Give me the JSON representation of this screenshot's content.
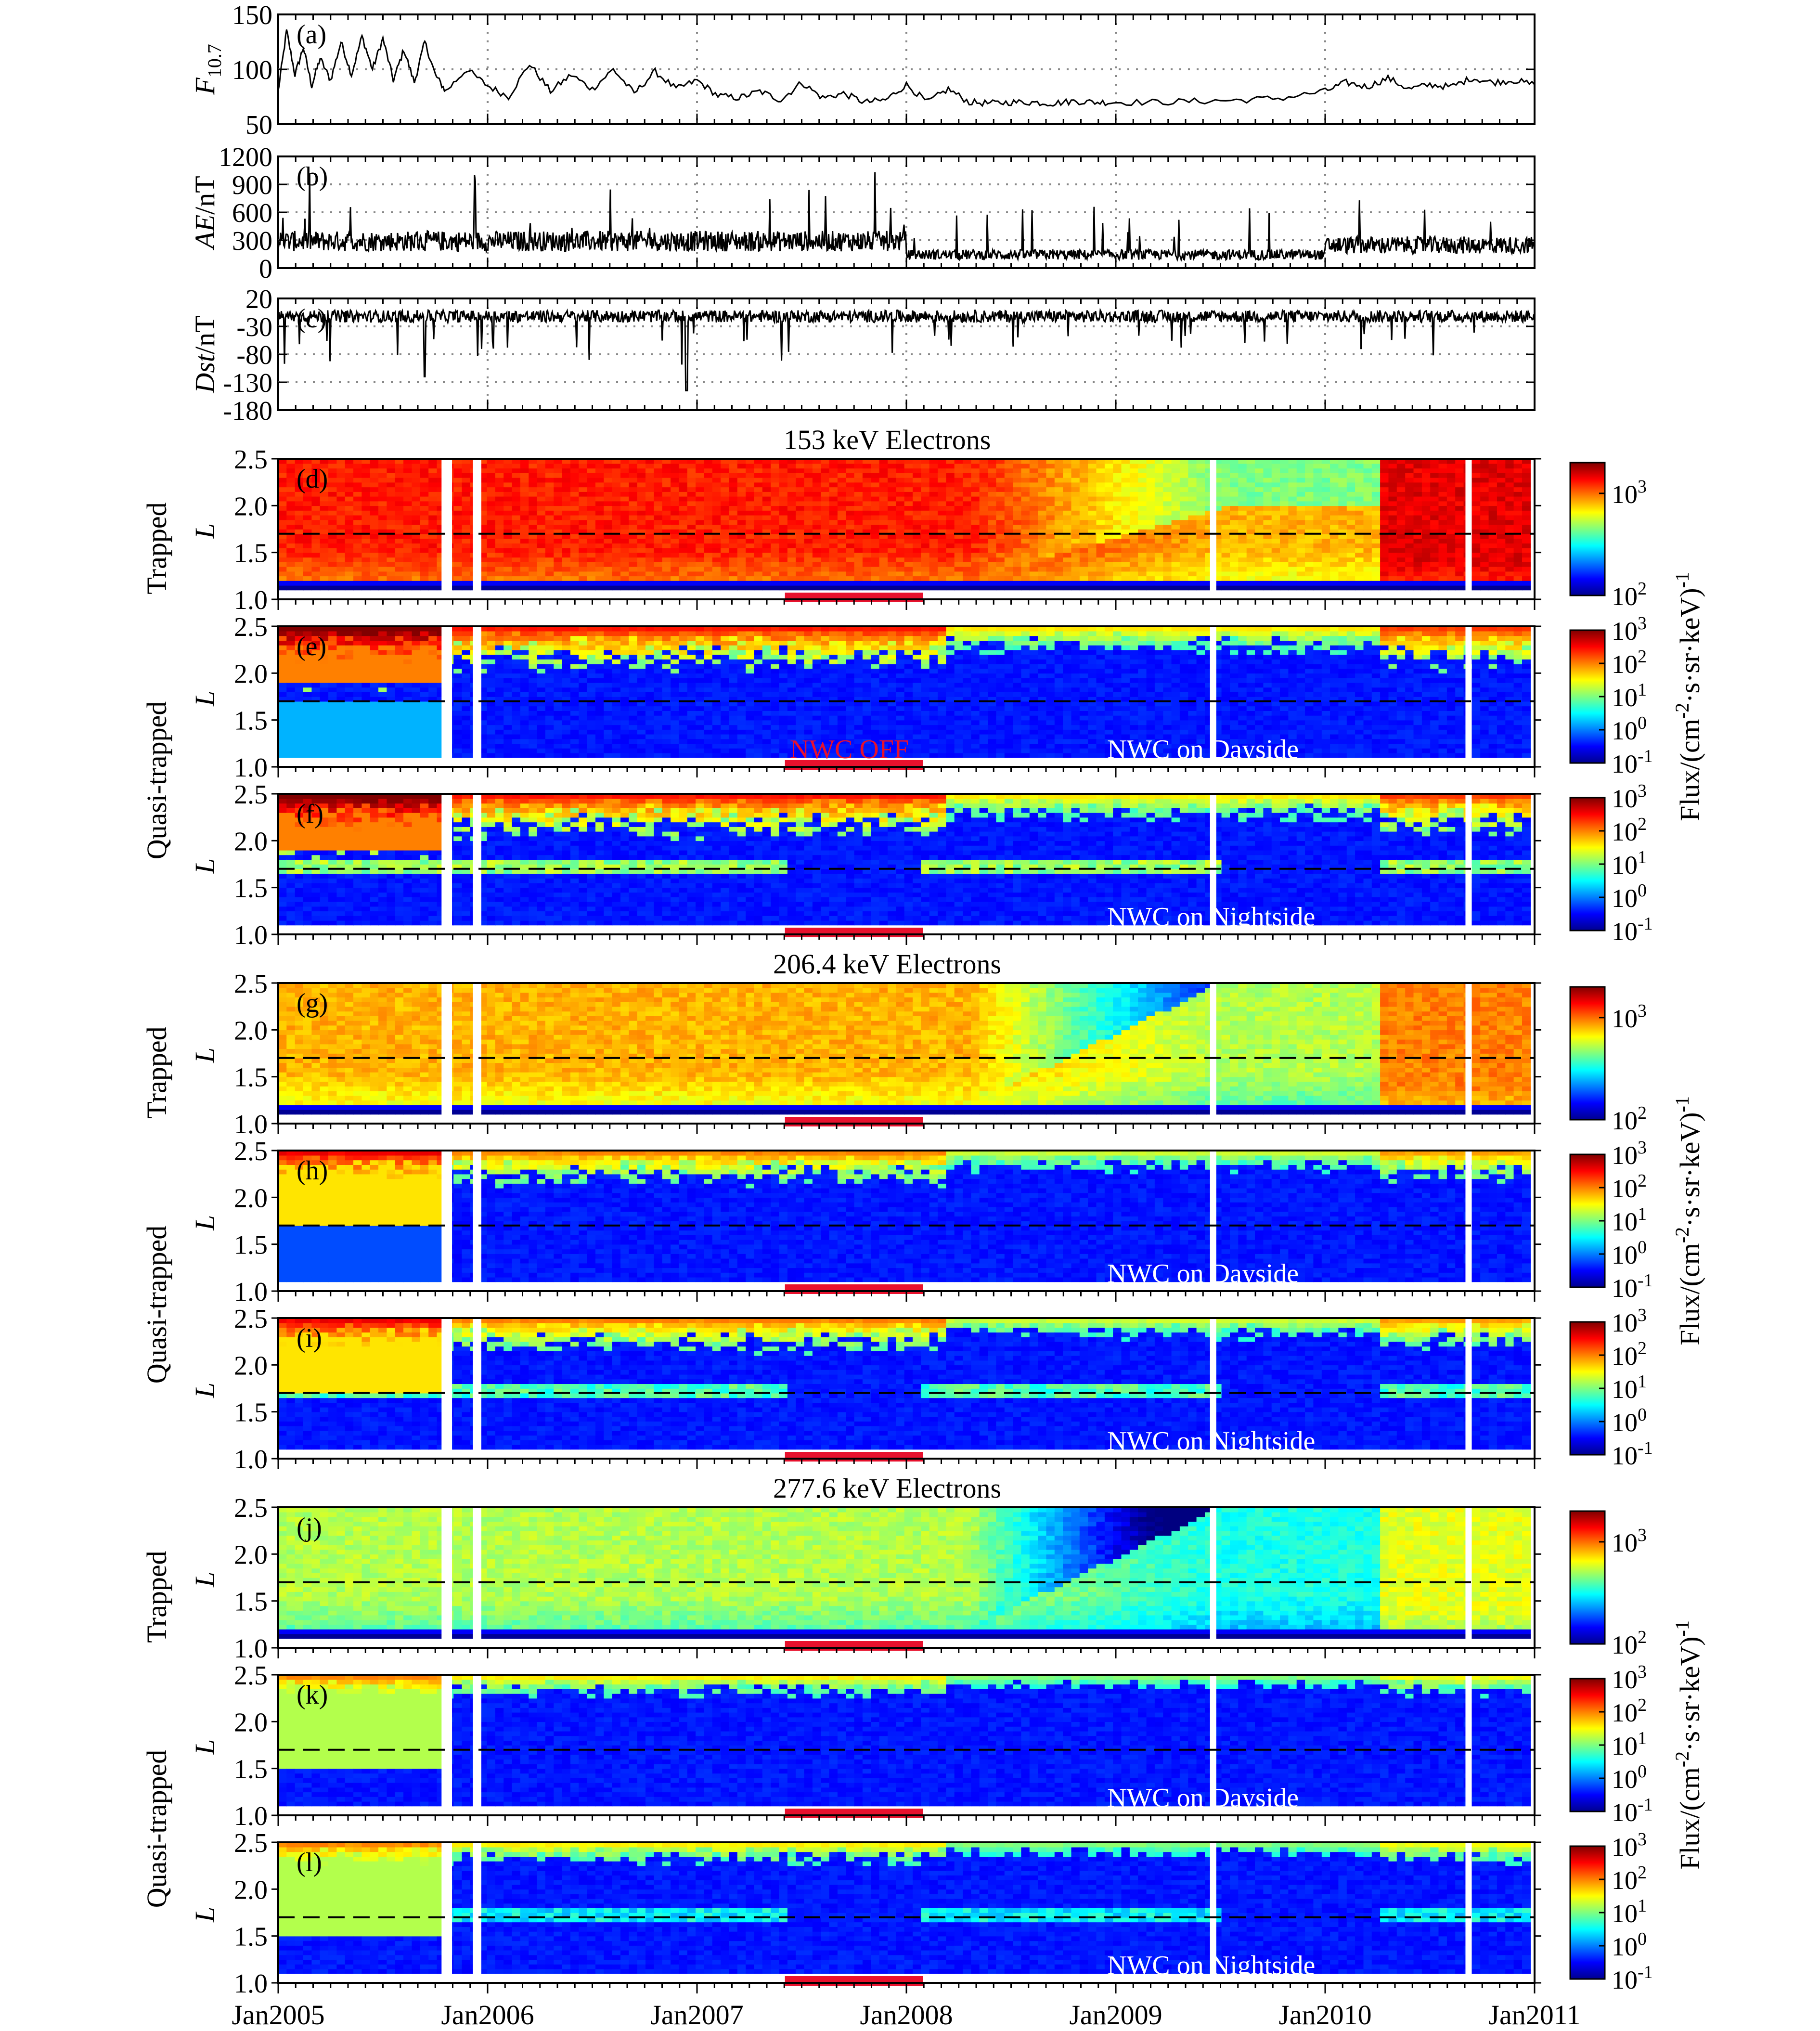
{
  "chart_data": {
    "type": "multi-panel",
    "x_range": [
      "2005-01-01",
      "2011-01-01"
    ],
    "x_ticks": [
      "Jan2005",
      "Jan2006",
      "Jan2007",
      "Jan2008",
      "Jan2009",
      "Jan2010",
      "Jan2011"
    ],
    "line_panels": [
      {
        "id": "a",
        "label": "(a)",
        "ylabel": "F10.7",
        "ylabel_main": "F",
        "ylabel_sub": "10.7",
        "ylim": [
          50,
          150
        ],
        "yticks": [
          "150",
          "100",
          "50"
        ],
        "ytick_values": [
          150,
          100,
          50
        ],
        "grid_values": [
          100
        ],
        "series": {
          "x": [
            2005.0,
            2005.04,
            2005.08,
            2005.12,
            2005.16,
            2005.2,
            2005.25,
            2005.3,
            2005.35,
            2005.4,
            2005.45,
            2005.5,
            2005.55,
            2005.6,
            2005.65,
            2005.7,
            2005.75,
            2005.8,
            2005.9,
            2006.0,
            2006.1,
            2006.2,
            2006.3,
            2006.4,
            2006.5,
            2006.6,
            2006.7,
            2006.8,
            2006.9,
            2007.0,
            2007.1,
            2007.2,
            2007.3,
            2007.4,
            2007.5,
            2007.6,
            2007.7,
            2007.8,
            2007.9,
            2008.0,
            2008.1,
            2008.2,
            2008.3,
            2008.4,
            2008.5,
            2008.6,
            2008.7,
            2008.8,
            2008.9,
            2009.0,
            2009.2,
            2009.4,
            2009.6,
            2009.8,
            2010.0,
            2010.1,
            2010.2,
            2010.3,
            2010.4,
            2010.5,
            2010.6,
            2010.7,
            2010.8,
            2010.9,
            2011.0
          ],
          "y": [
            80,
            135,
            95,
            120,
            85,
            110,
            90,
            125,
            95,
            130,
            100,
            128,
            90,
            118,
            88,
            125,
            95,
            80,
            100,
            85,
            75,
            105,
            80,
            95,
            82,
            100,
            78,
            98,
            82,
            90,
            76,
            74,
            80,
            72,
            88,
            74,
            78,
            70,
            72,
            86,
            70,
            82,
            70,
            69,
            70,
            70,
            69,
            71,
            70,
            70,
            70,
            71,
            72,
            74,
            80,
            88,
            84,
            92,
            82,
            86,
            84,
            92,
            88,
            90,
            86
          ]
        }
      },
      {
        "id": "b",
        "label": "(b)",
        "ylabel": "AE/nT",
        "ylabel_main": "AE",
        "ylabel_sub": "/nT",
        "ylim": [
          0,
          1200
        ],
        "yticks": [
          "1200",
          "900",
          "600",
          "300",
          "0"
        ],
        "ytick_values": [
          1200,
          900,
          600,
          300,
          0
        ],
        "grid_values": [
          900,
          600,
          300
        ],
        "noise": {
          "mean": 180,
          "spike_max": 1050
        }
      },
      {
        "id": "c",
        "label": "(c)",
        "ylabel": "Dst/nT",
        "ylabel_main": "Dst",
        "ylabel_sub": "/nT",
        "ylim": [
          -180,
          20
        ],
        "yticks": [
          "20",
          "-30",
          "-80",
          "-130",
          "-180"
        ],
        "ytick_values": [
          20,
          -30,
          -80,
          -130,
          -180
        ],
        "grid_values": [
          -30,
          -80,
          -130
        ],
        "noise": {
          "mean": -12,
          "spike_min": -145
        }
      }
    ],
    "energy_groups": [
      {
        "title": "153 keV   Electrons",
        "panels": [
          {
            "id": "d",
            "label": "(d)",
            "type": "Trapped",
            "note": "",
            "red_note": "",
            "cmin": 100,
            "cmax": 2000,
            "ticks": [
              "10^3",
              "10^2"
            ],
            "tick_values": [
              1000,
              100
            ]
          },
          {
            "id": "e",
            "label": "(e)",
            "type": "Quasi-trapped",
            "note": "NWC on Dayside",
            "red_note": "NWC OFF",
            "cmin": 0.1,
            "cmax": 1000,
            "ticks": [
              "10^3",
              "10^2",
              "10^1",
              "10^0",
              "10^-1"
            ],
            "tick_values": [
              1000,
              100,
              10,
              1,
              0.1
            ]
          },
          {
            "id": "f",
            "label": "(f)",
            "type": "Quasi-trapped",
            "note": "NWC on Nightside",
            "red_note": "",
            "cmin": 0.1,
            "cmax": 1000,
            "ticks": [
              "10^3",
              "10^2",
              "10^1",
              "10^0",
              "10^-1"
            ],
            "tick_values": [
              1000,
              100,
              10,
              1,
              0.1
            ]
          }
        ]
      },
      {
        "title": "206.4 keV   Electrons",
        "panels": [
          {
            "id": "g",
            "label": "(g)",
            "type": "Trapped",
            "note": "",
            "red_note": "",
            "cmin": 100,
            "cmax": 2000,
            "ticks": [
              "10^3",
              "10^2"
            ],
            "tick_values": [
              1000,
              100
            ]
          },
          {
            "id": "h",
            "label": "(h)",
            "type": "Quasi-trapped",
            "note": "NWC on Dayside",
            "red_note": "",
            "cmin": 0.1,
            "cmax": 1000,
            "ticks": [
              "10^3",
              "10^2",
              "10^1",
              "10^0",
              "10^-1"
            ],
            "tick_values": [
              1000,
              100,
              10,
              1,
              0.1
            ]
          },
          {
            "id": "i",
            "label": "(i)",
            "type": "Quasi-trapped",
            "note": "NWC on Nightside",
            "red_note": "",
            "cmin": 0.1,
            "cmax": 1000,
            "ticks": [
              "10^3",
              "10^2",
              "10^1",
              "10^0",
              "10^-1"
            ],
            "tick_values": [
              1000,
              100,
              10,
              1,
              0.1
            ]
          }
        ]
      },
      {
        "title": "277.6 keV   Electrons",
        "panels": [
          {
            "id": "j",
            "label": "(j)",
            "type": "Trapped",
            "note": "",
            "red_note": "",
            "cmin": 100,
            "cmax": 2000,
            "ticks": [
              "10^3",
              "10^2"
            ],
            "tick_values": [
              1000,
              100
            ]
          },
          {
            "id": "k",
            "label": "(k)",
            "type": "Quasi-trapped",
            "note": "NWC on Dayside",
            "red_note": "",
            "cmin": 0.1,
            "cmax": 1000,
            "ticks": [
              "10^3",
              "10^2",
              "10^1",
              "10^0",
              "10^-1"
            ],
            "tick_values": [
              1000,
              100,
              10,
              1,
              0.1
            ]
          },
          {
            "id": "l",
            "label": "(l)",
            "type": "Quasi-trapped",
            "note": "NWC on Nightside",
            "red_note": "",
            "cmin": 0.1,
            "cmax": 1000,
            "ticks": [
              "10^3",
              "10^2",
              "10^1",
              "10^0",
              "10^-1"
            ],
            "tick_values": [
              1000,
              100,
              10,
              1,
              0.1
            ]
          }
        ]
      }
    ],
    "L_range": [
      1.0,
      2.5
    ],
    "L_ticks": [
      "2.5",
      "2.0",
      "1.5",
      "1.0"
    ],
    "L_tick_values": [
      2.5,
      2.0,
      1.5,
      1.0
    ],
    "L_dashed": 1.7,
    "L_axis_label": "L",
    "data_gaps": [
      [
        2005.78,
        2005.83
      ],
      [
        2005.93,
        2005.97
      ],
      [
        2009.45,
        2009.48
      ],
      [
        2010.67,
        2010.7
      ]
    ],
    "nwc_off_interval": [
      2007.42,
      2008.08
    ],
    "flux_label": "Flux/(cm^-2·s·sr·keV)^-1",
    "group_type_labels": [
      "Trapped",
      "Quasi-trapped"
    ]
  }
}
